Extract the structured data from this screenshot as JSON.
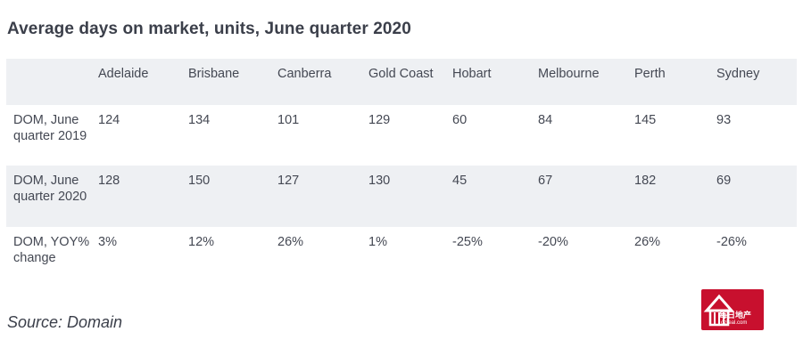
{
  "title": "Average days on market, units, June quarter 2020",
  "source": "Source: Domain",
  "logo": {
    "text": "每日地产",
    "subtext": "ozreal.com",
    "color": "#c8102e"
  },
  "chart_data": {
    "type": "table",
    "title": "Average days on market, units, June quarter 2020",
    "columns": [
      "",
      "Adelaide",
      "Brisbane",
      "Canberra",
      "Gold Coast",
      "Hobart",
      "Melbourne",
      "Perth",
      "Sydney"
    ],
    "rows": [
      {
        "label": "DOM, June quarter 2019",
        "values": [
          "124",
          "134",
          "101",
          "129",
          "60",
          "84",
          "145",
          "93"
        ]
      },
      {
        "label": "DOM, June quarter 2020",
        "values": [
          "128",
          "150",
          "127",
          "130",
          "45",
          "67",
          "182",
          "69"
        ]
      },
      {
        "label": "DOM, YOY% change",
        "values": [
          "3%",
          "12%",
          "26%",
          "1%",
          "-25%",
          "-20%",
          "26%",
          "-26%"
        ]
      }
    ],
    "shaded_color": "#eef0f3"
  }
}
